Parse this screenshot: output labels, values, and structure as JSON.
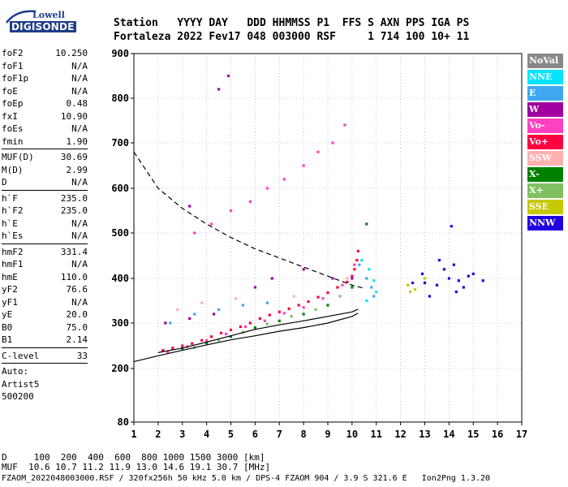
{
  "logo": {
    "brand": "Lowell",
    "product": "DIGISONDE"
  },
  "header": {
    "line1": "Station   YYYY DAY   DDD HHMMSS P1  FFS S AXN PPS IGA PS",
    "line2": "Fortaleza 2022 Fev17 048 003000 RSF     1 714 100 10+ 11"
  },
  "params": {
    "group1": [
      {
        "label": "foF2",
        "value": "10.250"
      },
      {
        "label": "foF1",
        "value": "N/A"
      },
      {
        "label": "foF1p",
        "value": "N/A"
      },
      {
        "label": "foE",
        "value": "N/A"
      },
      {
        "label": "foEp",
        "value": "0.48"
      },
      {
        "label": "fxI",
        "value": "10.90"
      },
      {
        "label": "foEs",
        "value": "N/A"
      },
      {
        "label": "fmin",
        "value": "1.90"
      }
    ],
    "group2": [
      {
        "label": "MUF(D)",
        "value": "30.69"
      },
      {
        "label": "M(D)",
        "value": "2.99"
      },
      {
        "label": "D",
        "value": "N/A"
      }
    ],
    "group3": [
      {
        "label": "h`F",
        "value": "235.0"
      },
      {
        "label": "h`F2",
        "value": "235.0"
      },
      {
        "label": "h`E",
        "value": "N/A"
      },
      {
        "label": "h`Es",
        "value": "N/A"
      }
    ],
    "group4": [
      {
        "label": "hmF2",
        "value": "331.4"
      },
      {
        "label": "hmF1",
        "value": "N/A"
      },
      {
        "label": "hmE",
        "value": "110.0"
      },
      {
        "label": "yF2",
        "value": "76.6"
      },
      {
        "label": "yF1",
        "value": "N/A"
      },
      {
        "label": "yE",
        "value": "20.0"
      },
      {
        "label": "B0",
        "value": "75.0"
      },
      {
        "label": "B1",
        "value": "2.14"
      }
    ],
    "group5": [
      {
        "label": "C-level",
        "value": "33"
      }
    ],
    "auto_lines": [
      "Auto:",
      "Artist5",
      "500200"
    ]
  },
  "legend": [
    {
      "label": "NoVal",
      "color": "#888888"
    },
    {
      "label": "NNE",
      "color": "#00e5ff"
    },
    {
      "label": "E",
      "color": "#3fa7f0"
    },
    {
      "label": "W",
      "color": "#a000a0"
    },
    {
      "label": "Vo-",
      "color": "#ff40c0"
    },
    {
      "label": "Vo+",
      "color": "#ff0040"
    },
    {
      "label": "SSW",
      "color": "#ffb0b0"
    },
    {
      "label": "X-",
      "color": "#008000"
    },
    {
      "label": "X+",
      "color": "#80c060"
    },
    {
      "label": "SSE",
      "color": "#c8c800"
    },
    {
      "label": "NNW",
      "color": "#2000e0"
    }
  ],
  "footer": {
    "line_d": "D     100  200  400  600  800 1000 1500 3000 [km]",
    "line_muf": "MUF  10.6 10.7 11.2 11.9 13.0 14.6 19.1 30.7 [MHz]",
    "credit": "FZAOM_2022048003000.RSF / 320fx256h 50 kHz 5.0 km / DPS-4 FZAOM 904 / 3.9 S 321.6 E   Ion2Png 1.3.20"
  },
  "chart_data": {
    "type": "scatter",
    "title": "",
    "xlabel": "",
    "ylabel": "",
    "xlim": [
      1,
      17
    ],
    "ylim": [
      80,
      900
    ],
    "xticks": [
      1,
      2,
      3,
      4,
      5,
      6,
      7,
      8,
      9,
      10,
      11,
      12,
      13,
      14,
      15,
      16,
      17
    ],
    "yticks": [
      80,
      200,
      300,
      400,
      500,
      600,
      700,
      800,
      900
    ],
    "grid": "dotted",
    "legend_position": "right",
    "series": [
      {
        "color": "#ff0040",
        "points": [
          [
            2.2,
            240
          ],
          [
            2.6,
            245
          ],
          [
            3.0,
            250
          ],
          [
            3.4,
            255
          ],
          [
            3.8,
            262
          ],
          [
            4.2,
            270
          ],
          [
            4.6,
            278
          ],
          [
            5.0,
            285
          ],
          [
            5.4,
            292
          ],
          [
            5.8,
            300
          ],
          [
            6.2,
            310
          ],
          [
            6.6,
            318
          ],
          [
            7.0,
            325
          ],
          [
            7.4,
            332
          ],
          [
            7.8,
            340
          ],
          [
            8.2,
            348
          ],
          [
            8.6,
            358
          ],
          [
            9.0,
            368
          ],
          [
            9.4,
            380
          ],
          [
            9.8,
            392
          ],
          [
            10.0,
            405
          ],
          [
            10.1,
            420
          ],
          [
            10.2,
            440
          ],
          [
            10.25,
            460
          ]
        ]
      },
      {
        "color": "#ff40c0",
        "points": [
          [
            2.4,
            236
          ],
          [
            3.2,
            248
          ],
          [
            4.0,
            262
          ],
          [
            4.8,
            276
          ],
          [
            5.6,
            292
          ],
          [
            6.4,
            305
          ],
          [
            7.2,
            322
          ],
          [
            8.0,
            335
          ],
          [
            8.8,
            355
          ],
          [
            9.6,
            385
          ],
          [
            10.1,
            430
          ]
        ]
      },
      {
        "color": "#008000",
        "points": [
          [
            3.0,
            244
          ],
          [
            4.0,
            256
          ],
          [
            5.0,
            270
          ],
          [
            6.0,
            290
          ],
          [
            7.0,
            305
          ],
          [
            8.0,
            320
          ],
          [
            9.0,
            340
          ],
          [
            10.0,
            380
          ],
          [
            10.6,
            520
          ]
        ]
      },
      {
        "color": "#80c060",
        "points": [
          [
            3.5,
            246
          ],
          [
            4.5,
            262
          ],
          [
            5.5,
            280
          ],
          [
            6.5,
            298
          ],
          [
            7.5,
            315
          ],
          [
            8.5,
            330
          ],
          [
            9.5,
            360
          ]
        ]
      },
      {
        "color": "#3fa7f0",
        "points": [
          [
            2.5,
            300
          ],
          [
            3.5,
            320
          ],
          [
            4.5,
            330
          ],
          [
            5.5,
            340
          ],
          [
            6.5,
            345
          ],
          [
            10.3,
            430
          ],
          [
            10.6,
            400
          ],
          [
            10.8,
            380
          ],
          [
            10.9,
            360
          ]
        ]
      },
      {
        "color": "#00e5ff",
        "points": [
          [
            10.4,
            440
          ],
          [
            10.7,
            420
          ],
          [
            10.9,
            395
          ],
          [
            11.0,
            370
          ],
          [
            10.6,
            350
          ]
        ]
      },
      {
        "color": "#a000a0",
        "points": [
          [
            2.3,
            300
          ],
          [
            3.3,
            310
          ],
          [
            4.3,
            320
          ],
          [
            6.0,
            380
          ],
          [
            6.7,
            400
          ],
          [
            8.0,
            420
          ],
          [
            9.2,
            400
          ],
          [
            10.0,
            400
          ],
          [
            3.3,
            560
          ],
          [
            4.5,
            820
          ],
          [
            4.9,
            850
          ]
        ]
      },
      {
        "color": "#ff40c0",
        "points": [
          [
            3.5,
            500
          ],
          [
            4.2,
            520
          ],
          [
            5.0,
            550
          ],
          [
            5.8,
            570
          ],
          [
            6.5,
            600
          ],
          [
            7.2,
            620
          ],
          [
            8.0,
            650
          ],
          [
            8.6,
            680
          ],
          [
            9.2,
            700
          ],
          [
            9.7,
            740
          ]
        ]
      },
      {
        "color": "#2000e0",
        "points": [
          [
            12.5,
            390
          ],
          [
            13.0,
            390
          ],
          [
            13.5,
            385
          ],
          [
            14.0,
            400
          ],
          [
            14.4,
            395
          ],
          [
            14.8,
            405
          ],
          [
            13.2,
            360
          ],
          [
            13.8,
            420
          ],
          [
            14.2,
            430
          ],
          [
            12.9,
            410
          ],
          [
            14.6,
            380
          ],
          [
            15.0,
            410
          ],
          [
            15.4,
            395
          ],
          [
            13.6,
            440
          ],
          [
            14.3,
            370
          ],
          [
            14.1,
            515
          ]
        ]
      },
      {
        "color": "#c8c800",
        "points": [
          [
            12.3,
            385
          ],
          [
            12.6,
            375
          ],
          [
            13.0,
            400
          ],
          [
            12.4,
            370
          ]
        ]
      },
      {
        "color": "#ffb0b0",
        "points": [
          [
            2.8,
            330
          ],
          [
            3.8,
            345
          ],
          [
            5.2,
            355
          ],
          [
            7.6,
            360
          ],
          [
            9.8,
            400
          ]
        ]
      }
    ],
    "profile_curve": [
      [
        2.0,
        235
      ],
      [
        3.0,
        245
      ],
      [
        4.0,
        258
      ],
      [
        5.0,
        272
      ],
      [
        6.0,
        286
      ],
      [
        7.0,
        296
      ],
      [
        8.0,
        305
      ],
      [
        9.0,
        315
      ],
      [
        10.0,
        325
      ],
      [
        10.25,
        331
      ]
    ],
    "profile_lower": [
      [
        1.0,
        215
      ],
      [
        2.0,
        228
      ],
      [
        3.0,
        240
      ],
      [
        4.0,
        252
      ],
      [
        5.0,
        263
      ],
      [
        6.0,
        272
      ],
      [
        7.0,
        282
      ],
      [
        8.0,
        290
      ],
      [
        9.0,
        300
      ],
      [
        10.0,
        315
      ],
      [
        10.25,
        322
      ]
    ],
    "muf_curve": [
      [
        1.0,
        680
      ],
      [
        2.0,
        600
      ],
      [
        3.0,
        555
      ],
      [
        4.0,
        520
      ],
      [
        5.0,
        490
      ],
      [
        6.0,
        465
      ],
      [
        7.0,
        445
      ],
      [
        8.0,
        425
      ],
      [
        9.0,
        405
      ],
      [
        10.0,
        385
      ],
      [
        10.5,
        378
      ]
    ]
  }
}
